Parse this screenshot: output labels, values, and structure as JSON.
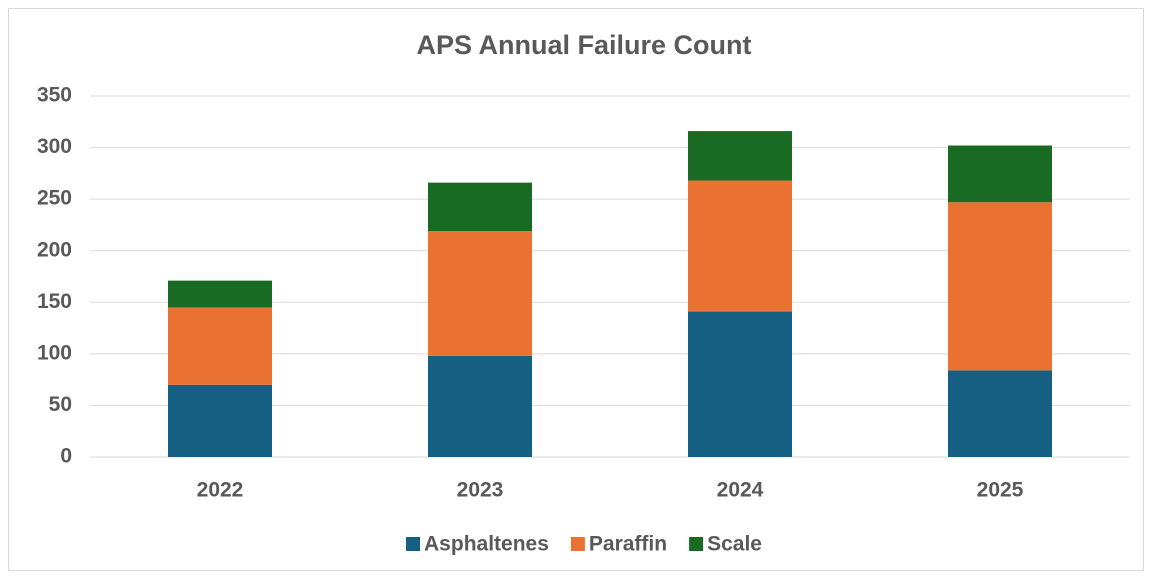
{
  "chart_data": {
    "type": "stacked_bar",
    "title": "APS Annual Failure Count",
    "categories": [
      "2022",
      "2023",
      "2024",
      "2025"
    ],
    "series": [
      {
        "name": "Asphaltenes",
        "color": "#156082",
        "values": [
          70,
          98,
          141,
          84
        ]
      },
      {
        "name": "Paraffin",
        "color": "#e97132",
        "values": [
          75,
          121,
          127,
          163
        ]
      },
      {
        "name": "Scale",
        "color": "#196b24",
        "values": [
          26,
          47,
          48,
          55
        ]
      }
    ],
    "ylim": [
      0,
      350
    ],
    "yticks": [
      0,
      50,
      100,
      150,
      200,
      250,
      300,
      350
    ],
    "grid": true,
    "legend": "bottom"
  }
}
